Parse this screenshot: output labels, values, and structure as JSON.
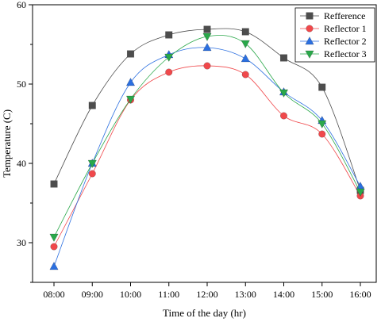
{
  "chart_data": {
    "type": "line",
    "xlabel": "Time of the day (hr)",
    "ylabel": "Temperature (C)",
    "categories": [
      "08:00",
      "09:00",
      "10:00",
      "11:00",
      "12:00",
      "13:00",
      "14:00",
      "15:00",
      "16:00"
    ],
    "ylim": [
      25,
      60
    ],
    "yticks": [
      30,
      40,
      50,
      60
    ],
    "legend_position": "top-right",
    "grid": false,
    "series": [
      {
        "name": "Refference",
        "marker": "square",
        "color": "#4d4d4d",
        "values": [
          37.4,
          47.3,
          53.8,
          56.2,
          56.9,
          56.6,
          53.3,
          49.6,
          36.6
        ]
      },
      {
        "name": "Reflector 1",
        "marker": "circle",
        "color": "#f0484b",
        "values": [
          29.5,
          38.7,
          48.0,
          51.5,
          52.3,
          51.2,
          46.0,
          43.7,
          35.9
        ]
      },
      {
        "name": "Reflector 2",
        "marker": "triangle-up",
        "color": "#2b6fe0",
        "values": [
          27.0,
          40.0,
          50.2,
          53.7,
          54.6,
          53.2,
          49.0,
          45.4,
          37.1
        ]
      },
      {
        "name": "Reflector 3",
        "marker": "triangle-down",
        "color": "#2aa84a",
        "values": [
          30.7,
          40.0,
          48.1,
          53.4,
          56.0,
          55.1,
          48.9,
          45.0,
          36.4
        ]
      }
    ]
  }
}
